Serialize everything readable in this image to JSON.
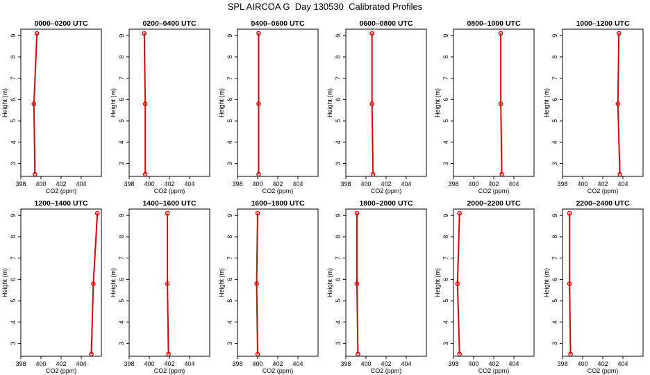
{
  "figure_title": "SPL AIRCOA G  Day 130530  Calibrated Profiles",
  "chart_data": [
    {
      "type": "line",
      "title": "0000–0200 UTC",
      "xlabel": "CO2 (ppm)",
      "ylabel": "Height (m)",
      "xlim": [
        398,
        406
      ],
      "ylim": [
        2.4,
        9.3
      ],
      "x_ticks": [
        398,
        400,
        402,
        404
      ],
      "y_ticks": [
        3,
        4,
        5,
        6,
        7,
        8,
        9
      ],
      "heights": [
        2.5,
        5.8,
        9.1
      ],
      "co2": [
        399.4,
        399.3,
        399.6
      ]
    },
    {
      "type": "line",
      "title": "0200–0400 UTC",
      "xlabel": "CO2 (ppm)",
      "ylabel": "Height (m)",
      "xlim": [
        398,
        406
      ],
      "ylim": [
        2.4,
        9.3
      ],
      "x_ticks": [
        398,
        400,
        402,
        404
      ],
      "y_ticks": [
        3,
        4,
        5,
        6,
        7,
        8,
        9
      ],
      "heights": [
        2.5,
        5.8,
        9.1
      ],
      "co2": [
        399.6,
        399.6,
        399.5
      ]
    },
    {
      "type": "line",
      "title": "0400–0600 UTC",
      "xlabel": "CO2 (ppm)",
      "ylabel": "Height (m)",
      "xlim": [
        398,
        406
      ],
      "ylim": [
        2.4,
        9.3
      ],
      "x_ticks": [
        398,
        400,
        402,
        404
      ],
      "y_ticks": [
        3,
        4,
        5,
        6,
        7,
        8,
        9
      ],
      "heights": [
        2.5,
        5.8,
        9.1
      ],
      "co2": [
        400.1,
        400.1,
        400.1
      ]
    },
    {
      "type": "line",
      "title": "0600–0800 UTC",
      "xlabel": "CO2 (ppm)",
      "ylabel": "Height (m)",
      "xlim": [
        398,
        406
      ],
      "ylim": [
        2.4,
        9.3
      ],
      "x_ticks": [
        398,
        400,
        402,
        404
      ],
      "y_ticks": [
        3,
        4,
        5,
        6,
        7,
        8,
        9
      ],
      "heights": [
        2.5,
        5.8,
        9.1
      ],
      "co2": [
        400.7,
        400.6,
        400.6
      ]
    },
    {
      "type": "line",
      "title": "0800–1000 UTC",
      "xlabel": "CO2 (ppm)",
      "ylabel": "Height (m)",
      "xlim": [
        398,
        406
      ],
      "ylim": [
        2.4,
        9.3
      ],
      "x_ticks": [
        398,
        400,
        402,
        404
      ],
      "y_ticks": [
        3,
        4,
        5,
        6,
        7,
        8,
        9
      ],
      "heights": [
        2.5,
        5.8,
        9.1
      ],
      "co2": [
        402.8,
        402.7,
        402.7
      ]
    },
    {
      "type": "line",
      "title": "1000–1200 UTC",
      "xlabel": "CO2 (ppm)",
      "ylabel": "Height (m)",
      "xlim": [
        398,
        406
      ],
      "ylim": [
        2.4,
        9.3
      ],
      "x_ticks": [
        398,
        400,
        402,
        404
      ],
      "y_ticks": [
        3,
        4,
        5,
        6,
        7,
        8,
        9
      ],
      "heights": [
        2.5,
        5.8,
        9.1
      ],
      "co2": [
        403.7,
        403.5,
        403.6
      ]
    },
    {
      "type": "line",
      "title": "1200–1400 UTC",
      "xlabel": "CO2 (ppm)",
      "ylabel": "Height (m)",
      "xlim": [
        398,
        406
      ],
      "ylim": [
        2.4,
        9.3
      ],
      "x_ticks": [
        398,
        400,
        402,
        404
      ],
      "y_ticks": [
        3,
        4,
        5,
        6,
        7,
        8,
        9
      ],
      "heights": [
        2.5,
        5.8,
        9.1
      ],
      "co2": [
        405.0,
        405.2,
        405.6
      ]
    },
    {
      "type": "line",
      "title": "1400–1600 UTC",
      "xlabel": "CO2 (ppm)",
      "ylabel": "Height (m)",
      "xlim": [
        398,
        406
      ],
      "ylim": [
        2.4,
        9.3
      ],
      "x_ticks": [
        398,
        400,
        402,
        404
      ],
      "y_ticks": [
        3,
        4,
        5,
        6,
        7,
        8,
        9
      ],
      "heights": [
        2.5,
        5.8,
        9.1
      ],
      "co2": [
        401.9,
        401.8,
        401.8
      ]
    },
    {
      "type": "line",
      "title": "1600–1800 UTC",
      "xlabel": "CO2 (ppm)",
      "ylabel": "Height (m)",
      "xlim": [
        398,
        406
      ],
      "ylim": [
        2.4,
        9.3
      ],
      "x_ticks": [
        398,
        400,
        402,
        404
      ],
      "y_ticks": [
        3,
        4,
        5,
        6,
        7,
        8,
        9
      ],
      "heights": [
        2.5,
        5.8,
        9.1
      ],
      "co2": [
        400.0,
        399.9,
        400.0
      ]
    },
    {
      "type": "line",
      "title": "1800–2000 UTC",
      "xlabel": "CO2 (ppm)",
      "ylabel": "Height (m)",
      "xlim": [
        398,
        406
      ],
      "ylim": [
        2.4,
        9.3
      ],
      "x_ticks": [
        398,
        400,
        402,
        404
      ],
      "y_ticks": [
        3,
        4,
        5,
        6,
        7,
        8,
        9
      ],
      "heights": [
        2.5,
        5.8,
        9.1
      ],
      "co2": [
        399.2,
        399.1,
        399.1
      ]
    },
    {
      "type": "line",
      "title": "2000–2200 UTC",
      "xlabel": "CO2 (ppm)",
      "ylabel": "Height (m)",
      "xlim": [
        398,
        406
      ],
      "ylim": [
        2.4,
        9.3
      ],
      "x_ticks": [
        398,
        400,
        402,
        404
      ],
      "y_ticks": [
        3,
        4,
        5,
        6,
        7,
        8,
        9
      ],
      "heights": [
        2.5,
        5.8,
        9.1
      ],
      "co2": [
        398.6,
        398.4,
        398.6
      ]
    },
    {
      "type": "line",
      "title": "2200–2400 UTC",
      "xlabel": "CO2 (ppm)",
      "ylabel": "Height (m)",
      "xlim": [
        398,
        406
      ],
      "ylim": [
        2.4,
        9.3
      ],
      "x_ticks": [
        398,
        400,
        402,
        404
      ],
      "y_ticks": [
        3,
        4,
        5,
        6,
        7,
        8,
        9
      ],
      "heights": [
        2.5,
        5.8,
        9.1
      ],
      "co2": [
        398.8,
        398.7,
        398.7
      ]
    }
  ],
  "colors": {
    "series": "#e00000",
    "axis": "#000000"
  }
}
